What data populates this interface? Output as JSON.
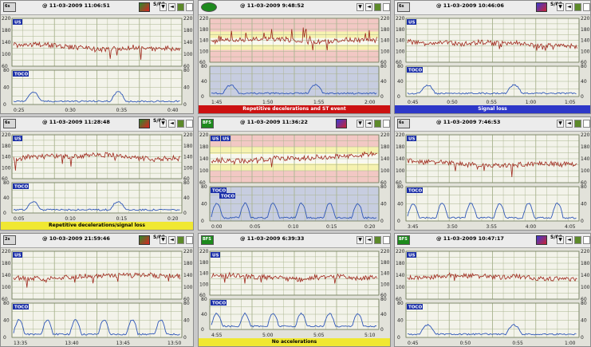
{
  "colors": {
    "grid": "#a9b48f",
    "fhr": "#a0281c",
    "toco": "#2f57b8",
    "label_bg": "#1b2fa8",
    "footer_red": "#cc1111",
    "footer_blue": "#2d37c8",
    "footer_yellow": "#f0e832"
  },
  "panels": [
    {
      "id": "p1",
      "badge": "6s",
      "badge_color": "#d8d8d8",
      "time": "@ 11-03-2009 11:06:51",
      "rate": "S/00",
      "us": "US",
      "toco": "TOCO",
      "xticks": [
        "0:25",
        "0:30",
        "0:35",
        "0:40"
      ],
      "footer": "",
      "style": "normal",
      "icon": "flag"
    },
    {
      "id": "p2",
      "badge": "",
      "badge_color": "#1d8a1d",
      "time": "@ 11-03-2009 9:48:52",
      "rate": "",
      "us": "",
      "toco": "",
      "xticks": [
        "1:45",
        "1:50",
        "1:55",
        "2:00"
      ],
      "footer": "Repetitive decelerations and ST event",
      "style": "stan",
      "icon": "flag"
    },
    {
      "id": "p3",
      "badge": "6s",
      "badge_color": "#d8d8d8",
      "time": "@ 11-03-2009 10:46:06",
      "rate": "S/00",
      "us": "US",
      "toco": "TOCO",
      "xticks": [
        "0:45",
        "0:50",
        "0:55",
        "1:00",
        "1:05"
      ],
      "footer": "Signal loss",
      "style": "normal",
      "icon": "doc"
    },
    {
      "id": "p4",
      "badge": "6s",
      "badge_color": "#d8d8d8",
      "time": "@ 11-03-2009 11:28:48",
      "rate": "S/00",
      "us": "US",
      "toco": "TOCO",
      "xticks": [
        "0:05",
        "0:10",
        "0:15",
        "0:20"
      ],
      "footer": "Repetitive decelerations/signal loss",
      "style": "normal",
      "icon": "flag"
    },
    {
      "id": "p5",
      "badge": "BFS",
      "badge_color": "#1d8a1d",
      "time": "@ 11-03-2009 11:36:22",
      "rate": "",
      "us": "US",
      "us2": "US",
      "toco": "TOCO",
      "toco2": "TOCO",
      "xticks": [
        "0:00",
        "0:05",
        "0:10",
        "0:15",
        "0:20"
      ],
      "footer": "",
      "style": "bands",
      "icon": "doc"
    },
    {
      "id": "p6",
      "badge": "6s",
      "badge_color": "#d8d8d8",
      "time": "@ 11-03-2009 7:46:53",
      "rate": "",
      "us": "US",
      "toco": "TOCO",
      "xticks": [
        "3:45",
        "3:50",
        "3:55",
        "4:00",
        "4:05"
      ],
      "footer": "",
      "style": "normal",
      "icon": "flag"
    },
    {
      "id": "p7",
      "badge": "2s",
      "badge_color": "#d8d8d8",
      "time": "@ 10-03-2009 21:59:46",
      "rate": "S/00",
      "us": "US",
      "toco": "TOCO",
      "xticks": [
        "13:35",
        "13:40",
        "13:45",
        "13:50"
      ],
      "footer": "",
      "style": "normal",
      "icon": "flag"
    },
    {
      "id": "p8",
      "badge": "BFS",
      "badge_color": "#1d8a1d",
      "time": "@ 11-03-2009 6:39:33",
      "rate": "",
      "us": "US",
      "toco": "TOCO",
      "xticks": [
        "4:55",
        "5:00",
        "5:05",
        "5:10"
      ],
      "footer": "No accelerations",
      "style": "normal",
      "icon": "flag"
    },
    {
      "id": "p9",
      "badge": "BFS",
      "badge_color": "#1d8a1d",
      "time": "@ 11-03-2009 10:47:17",
      "rate": "S/00",
      "us": "US",
      "toco": "TOCO",
      "xticks": [
        "0:45",
        "0:50",
        "0:55",
        "1:00"
      ],
      "footer": "",
      "style": "normal",
      "icon": "doc"
    }
  ],
  "yticks_fhr": [
    "220",
    "180",
    "140",
    "100",
    "60"
  ],
  "yticks_toco": [
    "80",
    "40",
    "0"
  ]
}
